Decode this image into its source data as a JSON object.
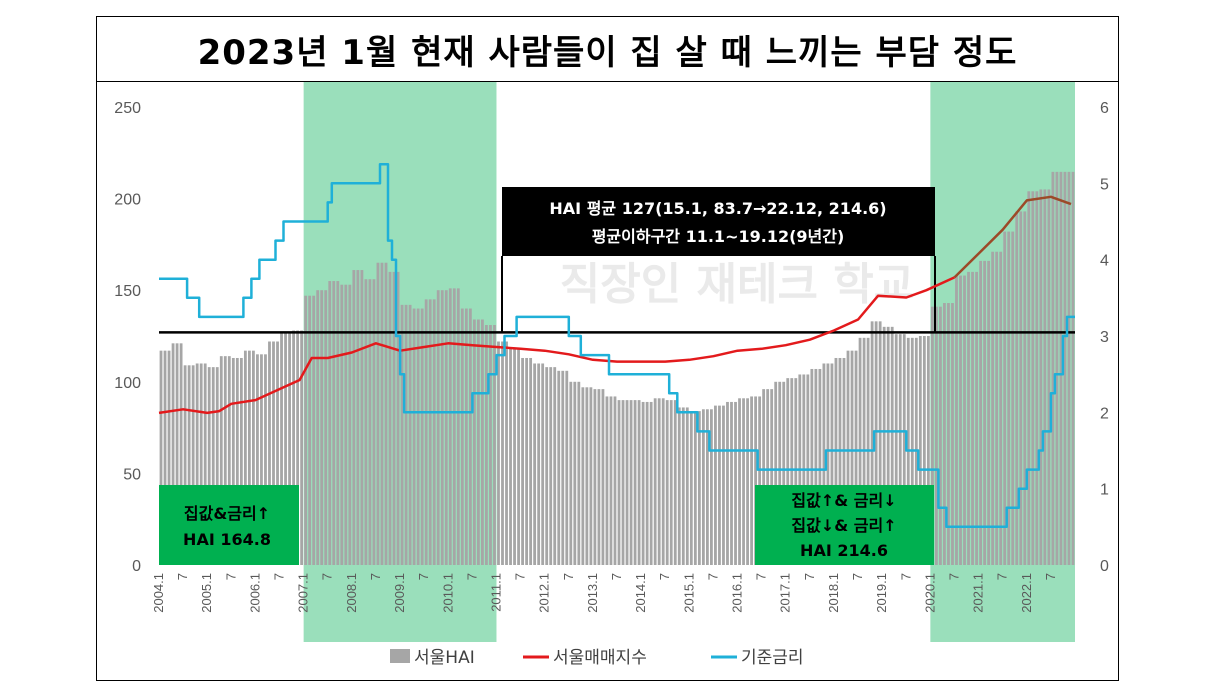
{
  "title": "2023년 1월 현재 사람들이 집 살 때 느끼는 부담 정도",
  "watermark": "직장인 재테크 학교",
  "colors": {
    "bars": "#a6a6a6",
    "index_line": "#e31a1c",
    "index_line_late": "#9c4a28",
    "rate_line": "#1fb0d8",
    "shade": "#8fdcb4",
    "label_box": "#00b050",
    "avg_box": "#000000"
  },
  "annotations": {
    "avg_box_line1": "HAI 평균 127(15.1, 83.7→22.12, 214.6)",
    "avg_box_line2": "평균이하구간 11.1~19.12(9년간)",
    "left_box_line1": "집값&금리↑",
    "left_box_line2": "HAI 164.8",
    "right_box_line1": "집값↑& 금리↓",
    "right_box_line2": "집값↓& 금리↑",
    "right_box_line3": "HAI 214.6"
  },
  "legend": {
    "bars": "서울HAI",
    "index": "서울매매지수",
    "rate": "기준금리"
  },
  "chart_data": {
    "type": "bar+line",
    "x_start": "2004.1",
    "x_end": "2022.12",
    "x_ticks": [
      "2004.1",
      "7",
      "2005.1",
      "7",
      "2006.1",
      "7",
      "2007.1",
      "7",
      "2008.1",
      "7",
      "2009.1",
      "7",
      "2010.1",
      "7",
      "2011.1",
      "7",
      "2012.1",
      "7",
      "2013.1",
      "7",
      "2014.1",
      "7",
      "2015.1",
      "7",
      "2016.1",
      "7",
      "2017.1",
      "7",
      "2018.1",
      "7",
      "2019.1",
      "7",
      "2020.1",
      "7",
      "2021.1",
      "7",
      "2022.1",
      "7"
    ],
    "y_left_ticks": [
      "0",
      "50",
      "100",
      "150",
      "200",
      "250"
    ],
    "y_right_ticks": [
      "0",
      "1",
      "2",
      "3",
      "4",
      "5",
      "6"
    ],
    "ylim_left": [
      0,
      250
    ],
    "ylim_right": [
      0,
      6
    ],
    "average_hai": 127,
    "shaded_periods": [
      [
        "2007.1",
        "2010.12"
      ],
      [
        "2020.1",
        "2022.12"
      ]
    ],
    "hai_quarterly": [
      {
        "q": "2004 Q1",
        "v": 117
      },
      {
        "q": "2004 Q2",
        "v": 121
      },
      {
        "q": "2004 Q3",
        "v": 109
      },
      {
        "q": "2004 Q4",
        "v": 110
      },
      {
        "q": "2005 Q1",
        "v": 108
      },
      {
        "q": "2005 Q2",
        "v": 114
      },
      {
        "q": "2005 Q3",
        "v": 113
      },
      {
        "q": "2005 Q4",
        "v": 117
      },
      {
        "q": "2006 Q1",
        "v": 115
      },
      {
        "q": "2006 Q2",
        "v": 122
      },
      {
        "q": "2006 Q3",
        "v": 127
      },
      {
        "q": "2006 Q4",
        "v": 128
      },
      {
        "q": "2007 Q1",
        "v": 147
      },
      {
        "q": "2007 Q2",
        "v": 150
      },
      {
        "q": "2007 Q3",
        "v": 155
      },
      {
        "q": "2007 Q4",
        "v": 153
      },
      {
        "q": "2008 Q1",
        "v": 161
      },
      {
        "q": "2008 Q2",
        "v": 156
      },
      {
        "q": "2008 Q3",
        "v": 165
      },
      {
        "q": "2008 Q4",
        "v": 160
      },
      {
        "q": "2009 Q1",
        "v": 142
      },
      {
        "q": "2009 Q2",
        "v": 140
      },
      {
        "q": "2009 Q3",
        "v": 145
      },
      {
        "q": "2009 Q4",
        "v": 150
      },
      {
        "q": "2010 Q1",
        "v": 151
      },
      {
        "q": "2010 Q2",
        "v": 140
      },
      {
        "q": "2010 Q3",
        "v": 134
      },
      {
        "q": "2010 Q4",
        "v": 131
      },
      {
        "q": "2011 Q1",
        "v": 122
      },
      {
        "q": "2011 Q2",
        "v": 118
      },
      {
        "q": "2011 Q3",
        "v": 113
      },
      {
        "q": "2011 Q4",
        "v": 110
      },
      {
        "q": "2012 Q1",
        "v": 108
      },
      {
        "q": "2012 Q2",
        "v": 106
      },
      {
        "q": "2012 Q3",
        "v": 100
      },
      {
        "q": "2012 Q4",
        "v": 97
      },
      {
        "q": "2013 Q1",
        "v": 96
      },
      {
        "q": "2013 Q2",
        "v": 92
      },
      {
        "q": "2013 Q3",
        "v": 90
      },
      {
        "q": "2013 Q4",
        "v": 90
      },
      {
        "q": "2014 Q1",
        "v": 89
      },
      {
        "q": "2014 Q2",
        "v": 91
      },
      {
        "q": "2014 Q3",
        "v": 90
      },
      {
        "q": "2014 Q4",
        "v": 86
      },
      {
        "q": "2015 Q1",
        "v": 84
      },
      {
        "q": "2015 Q2",
        "v": 85
      },
      {
        "q": "2015 Q3",
        "v": 87
      },
      {
        "q": "2015 Q4",
        "v": 89
      },
      {
        "q": "2016 Q1",
        "v": 91
      },
      {
        "q": "2016 Q2",
        "v": 92
      },
      {
        "q": "2016 Q3",
        "v": 96
      },
      {
        "q": "2016 Q4",
        "v": 100
      },
      {
        "q": "2017 Q1",
        "v": 102
      },
      {
        "q": "2017 Q2",
        "v": 104
      },
      {
        "q": "2017 Q3",
        "v": 107
      },
      {
        "q": "2017 Q4",
        "v": 110
      },
      {
        "q": "2018 Q1",
        "v": 113
      },
      {
        "q": "2018 Q2",
        "v": 117
      },
      {
        "q": "2018 Q3",
        "v": 124
      },
      {
        "q": "2018 Q4",
        "v": 133
      },
      {
        "q": "2019 Q1",
        "v": 130
      },
      {
        "q": "2019 Q2",
        "v": 126
      },
      {
        "q": "2019 Q3",
        "v": 124
      },
      {
        "q": "2019 Q4",
        "v": 125
      },
      {
        "q": "2020 Q1",
        "v": 141
      },
      {
        "q": "2020 Q2",
        "v": 143
      },
      {
        "q": "2020 Q3",
        "v": 158
      },
      {
        "q": "2020 Q4",
        "v": 160
      },
      {
        "q": "2021 Q1",
        "v": 166
      },
      {
        "q": "2021 Q2",
        "v": 171
      },
      {
        "q": "2021 Q3",
        "v": 182
      },
      {
        "q": "2021 Q4",
        "v": 193
      },
      {
        "q": "2022 Q1",
        "v": 204
      },
      {
        "q": "2022 Q2",
        "v": 205
      },
      {
        "q": "2022 Q3",
        "v": 214.6
      },
      {
        "q": "2022 Q4",
        "v": 214.6
      }
    ],
    "seoul_price_index": [
      {
        "x": "2004.1",
        "v": 83
      },
      {
        "x": "2004.7",
        "v": 85
      },
      {
        "x": "2005.1",
        "v": 83
      },
      {
        "x": "2005.4",
        "v": 84
      },
      {
        "x": "2005.7",
        "v": 88
      },
      {
        "x": "2006.1",
        "v": 90
      },
      {
        "x": "2006.7",
        "v": 96
      },
      {
        "x": "2006.12",
        "v": 101
      },
      {
        "x": "2007.3",
        "v": 113
      },
      {
        "x": "2007.7",
        "v": 113
      },
      {
        "x": "2008.1",
        "v": 116
      },
      {
        "x": "2008.7",
        "v": 121
      },
      {
        "x": "2009.1",
        "v": 117
      },
      {
        "x": "2009.7",
        "v": 119
      },
      {
        "x": "2010.1",
        "v": 121
      },
      {
        "x": "2010.7",
        "v": 120
      },
      {
        "x": "2011.1",
        "v": 119
      },
      {
        "x": "2011.7",
        "v": 118
      },
      {
        "x": "2012.1",
        "v": 117
      },
      {
        "x": "2012.7",
        "v": 115
      },
      {
        "x": "2013.1",
        "v": 112
      },
      {
        "x": "2013.7",
        "v": 111
      },
      {
        "x": "2014.1",
        "v": 111
      },
      {
        "x": "2014.7",
        "v": 111
      },
      {
        "x": "2015.1",
        "v": 112
      },
      {
        "x": "2015.7",
        "v": 114
      },
      {
        "x": "2016.1",
        "v": 117
      },
      {
        "x": "2016.7",
        "v": 118
      },
      {
        "x": "2017.1",
        "v": 120
      },
      {
        "x": "2017.7",
        "v": 123
      },
      {
        "x": "2018.1",
        "v": 128
      },
      {
        "x": "2018.7",
        "v": 134
      },
      {
        "x": "2018.12",
        "v": 147
      },
      {
        "x": "2019.7",
        "v": 146
      },
      {
        "x": "2019.12",
        "v": 150
      },
      {
        "x": "2020.7",
        "v": 157
      },
      {
        "x": "2021.1",
        "v": 170
      },
      {
        "x": "2021.7",
        "v": 183
      },
      {
        "x": "2022.1",
        "v": 199
      },
      {
        "x": "2022.7",
        "v": 201
      },
      {
        "x": "2022.12",
        "v": 197
      }
    ],
    "base_rate": [
      {
        "x": "2004.1",
        "v": 3.75
      },
      {
        "x": "2004.8",
        "v": 3.5
      },
      {
        "x": "2004.11",
        "v": 3.25
      },
      {
        "x": "2005.10",
        "v": 3.5
      },
      {
        "x": "2005.12",
        "v": 3.75
      },
      {
        "x": "2006.2",
        "v": 4.0
      },
      {
        "x": "2006.6",
        "v": 4.25
      },
      {
        "x": "2006.8",
        "v": 4.5
      },
      {
        "x": "2007.7",
        "v": 4.75
      },
      {
        "x": "2007.8",
        "v": 5.0
      },
      {
        "x": "2008.8",
        "v": 5.25
      },
      {
        "x": "2008.10",
        "v": 4.25
      },
      {
        "x": "2008.11",
        "v": 4.0
      },
      {
        "x": "2008.12",
        "v": 3.0
      },
      {
        "x": "2009.1",
        "v": 2.5
      },
      {
        "x": "2009.2",
        "v": 2.0
      },
      {
        "x": "2010.7",
        "v": 2.25
      },
      {
        "x": "2010.11",
        "v": 2.5
      },
      {
        "x": "2011.1",
        "v": 2.75
      },
      {
        "x": "2011.3",
        "v": 3.0
      },
      {
        "x": "2011.6",
        "v": 3.25
      },
      {
        "x": "2012.7",
        "v": 3.0
      },
      {
        "x": "2012.10",
        "v": 2.75
      },
      {
        "x": "2013.5",
        "v": 2.5
      },
      {
        "x": "2014.8",
        "v": 2.25
      },
      {
        "x": "2014.10",
        "v": 2.0
      },
      {
        "x": "2015.3",
        "v": 1.75
      },
      {
        "x": "2015.6",
        "v": 1.5
      },
      {
        "x": "2016.6",
        "v": 1.25
      },
      {
        "x": "2017.11",
        "v": 1.5
      },
      {
        "x": "2018.11",
        "v": 1.75
      },
      {
        "x": "2019.7",
        "v": 1.5
      },
      {
        "x": "2019.10",
        "v": 1.25
      },
      {
        "x": "2020.3",
        "v": 0.75
      },
      {
        "x": "2020.5",
        "v": 0.5
      },
      {
        "x": "2021.8",
        "v": 0.75
      },
      {
        "x": "2021.11",
        "v": 1.0
      },
      {
        "x": "2022.1",
        "v": 1.25
      },
      {
        "x": "2022.4",
        "v": 1.5
      },
      {
        "x": "2022.5",
        "v": 1.75
      },
      {
        "x": "2022.7",
        "v": 2.25
      },
      {
        "x": "2022.8",
        "v": 2.5
      },
      {
        "x": "2022.10",
        "v": 3.0
      },
      {
        "x": "2022.11",
        "v": 3.25
      }
    ]
  }
}
